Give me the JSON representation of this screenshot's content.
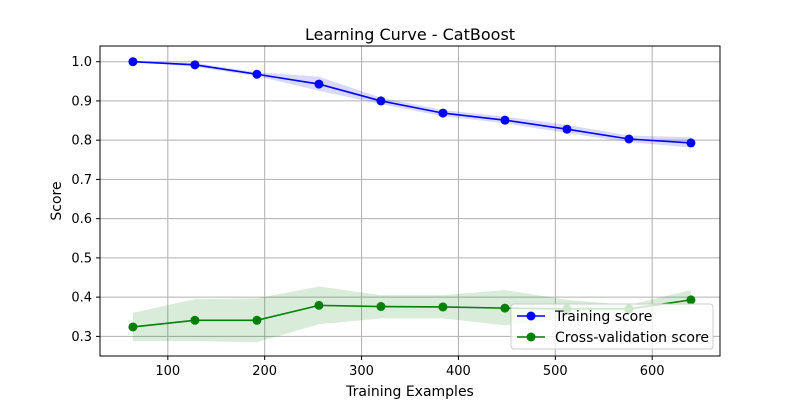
{
  "chart_data": {
    "type": "line",
    "title": "Learning Curve - CatBoost",
    "xlabel": "Training Examples",
    "ylabel": "Score",
    "xlim": [
      30,
      670
    ],
    "ylim": [
      0.25,
      1.04
    ],
    "xticks": [
      100,
      200,
      300,
      400,
      500,
      600
    ],
    "yticks": [
      0.3,
      0.4,
      0.5,
      0.6,
      0.7,
      0.8,
      0.9,
      1.0
    ],
    "xtick_labels": [
      "100",
      "200",
      "300",
      "400",
      "500",
      "600"
    ],
    "ytick_labels": [
      "0.3",
      "0.4",
      "0.5",
      "0.6",
      "0.7",
      "0.8",
      "0.9",
      "1.0"
    ],
    "grid": true,
    "legend_position": "lower-right",
    "x": [
      64,
      128,
      192,
      256,
      320,
      384,
      448,
      512,
      576,
      640
    ],
    "series": [
      {
        "name": "Training score",
        "color": "#0000ff",
        "values": [
          1.0,
          0.992,
          0.968,
          0.943,
          0.9,
          0.869,
          0.851,
          0.828,
          0.803,
          0.793
        ],
        "band_upper": [
          1.0,
          0.997,
          0.973,
          0.962,
          0.908,
          0.877,
          0.86,
          0.839,
          0.812,
          0.807
        ],
        "band_lower": [
          1.0,
          0.987,
          0.963,
          0.926,
          0.892,
          0.861,
          0.843,
          0.818,
          0.795,
          0.781
        ]
      },
      {
        "name": "Cross-validation score",
        "color": "#008000",
        "values": [
          0.324,
          0.341,
          0.341,
          0.379,
          0.376,
          0.375,
          0.372,
          0.37,
          0.37,
          0.393
        ],
        "band_upper": [
          0.36,
          0.395,
          0.397,
          0.427,
          0.405,
          0.405,
          0.418,
          0.393,
          0.38,
          0.418
        ],
        "band_lower": [
          0.288,
          0.288,
          0.285,
          0.331,
          0.346,
          0.346,
          0.328,
          0.348,
          0.36,
          0.368
        ]
      }
    ]
  }
}
